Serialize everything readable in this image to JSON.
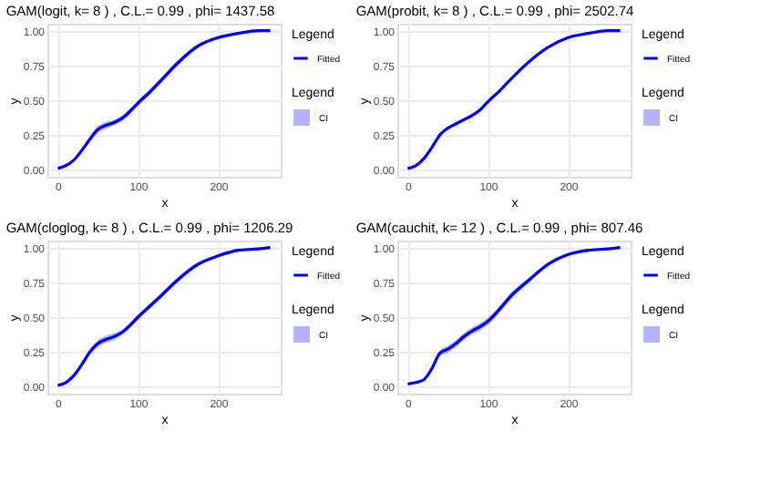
{
  "chart_data": [
    {
      "type": "line",
      "title": "GAM(logit, k= 8 ) , C.L.= 0.99 , phi= 1437.58",
      "xlabel": "x",
      "ylabel": "y",
      "legend_title": "Legend",
      "legend": "right",
      "grid": true,
      "x": [
        0,
        10,
        20,
        30,
        40,
        50,
        60,
        70,
        80,
        90,
        100,
        115,
        130,
        150,
        175,
        200,
        225,
        250,
        265
      ],
      "xlim": [
        -13,
        278
      ],
      "xticks": [
        0,
        100,
        200
      ],
      "ylim": [
        -0.05,
        1.05
      ],
      "yticks": [
        {
          "value": 0,
          "label": "0.00"
        },
        {
          "value": 0.25,
          "label": "0.25"
        },
        {
          "value": 0.5,
          "label": "0.50"
        },
        {
          "value": 0.75,
          "label": "0.75"
        },
        {
          "value": 1,
          "label": "1.00"
        }
      ],
      "series": [
        {
          "name": "Fitted",
          "color": "#0000ff",
          "values": [
            0.01,
            0.03,
            0.07,
            0.14,
            0.22,
            0.29,
            0.32,
            0.34,
            0.37,
            0.42,
            0.48,
            0.56,
            0.65,
            0.77,
            0.89,
            0.95,
            0.98,
            1.0,
            1.0
          ],
          "lower": [
            0.005,
            0.02,
            0.06,
            0.125,
            0.2,
            0.265,
            0.295,
            0.32,
            0.35,
            0.4,
            0.46,
            0.54,
            0.63,
            0.75,
            0.875,
            0.94,
            0.97,
            0.99,
            0.995
          ],
          "upper": [
            0.015,
            0.04,
            0.08,
            0.155,
            0.24,
            0.315,
            0.345,
            0.36,
            0.39,
            0.44,
            0.5,
            0.58,
            0.67,
            0.79,
            0.905,
            0.96,
            0.99,
            1.005,
            1.005
          ]
        },
        {
          "name": "CI",
          "type": "area",
          "color": "#0000ff",
          "values": [
            null,
            null,
            null,
            null,
            null,
            null,
            null,
            null,
            null,
            null,
            null,
            null,
            null,
            null,
            null,
            null,
            null,
            null,
            null
          ]
        }
      ]
    },
    {
      "type": "line",
      "title": "GAM(probit, k= 8 ) , C.L.= 0.99 , phi= 2502.74",
      "xlabel": "x",
      "ylabel": "y",
      "legend_title": "Legend",
      "legend": "right",
      "grid": true,
      "x": [
        0,
        10,
        20,
        30,
        40,
        50,
        60,
        70,
        80,
        90,
        100,
        115,
        130,
        150,
        175,
        200,
        225,
        250,
        265
      ],
      "xlim": [
        -13,
        278
      ],
      "xticks": [
        0,
        100,
        200
      ],
      "ylim": [
        -0.05,
        1.05
      ],
      "yticks": [
        {
          "value": 0,
          "label": "0.00"
        },
        {
          "value": 0.25,
          "label": "0.25"
        },
        {
          "value": 0.5,
          "label": "0.50"
        },
        {
          "value": 0.75,
          "label": "0.75"
        },
        {
          "value": 1,
          "label": "1.00"
        }
      ],
      "series": [
        {
          "name": "Fitted",
          "color": "#0000ff",
          "values": [
            0.01,
            0.03,
            0.08,
            0.16,
            0.25,
            0.3,
            0.33,
            0.36,
            0.39,
            0.43,
            0.49,
            0.57,
            0.66,
            0.77,
            0.88,
            0.95,
            0.98,
            1.0,
            1.0
          ],
          "lower": [
            0.005,
            0.025,
            0.075,
            0.155,
            0.245,
            0.288,
            0.318,
            0.348,
            0.378,
            0.42,
            0.485,
            0.565,
            0.655,
            0.765,
            0.875,
            0.945,
            0.975,
            0.995,
            0.998
          ],
          "upper": [
            0.015,
            0.035,
            0.085,
            0.165,
            0.255,
            0.312,
            0.342,
            0.372,
            0.402,
            0.44,
            0.495,
            0.575,
            0.665,
            0.775,
            0.885,
            0.955,
            0.985,
            1.003,
            1.002
          ]
        },
        {
          "name": "CI",
          "type": "area",
          "color": "#0000ff",
          "values": [
            null,
            null,
            null,
            null,
            null,
            null,
            null,
            null,
            null,
            null,
            null,
            null,
            null,
            null,
            null,
            null,
            null,
            null,
            null
          ]
        }
      ]
    },
    {
      "type": "line",
      "title": "GAM(cloglog, k= 8 ) , C.L.= 0.99 , phi= 1206.29",
      "xlabel": "x",
      "ylabel": "y",
      "legend_title": "Legend",
      "legend": "right",
      "grid": true,
      "x": [
        0,
        10,
        20,
        30,
        40,
        50,
        60,
        70,
        80,
        90,
        100,
        115,
        130,
        150,
        175,
        200,
        225,
        250,
        265
      ],
      "xlim": [
        -13,
        278
      ],
      "xticks": [
        0,
        100,
        200
      ],
      "ylim": [
        -0.05,
        1.05
      ],
      "yticks": [
        {
          "value": 0,
          "label": "0.00"
        },
        {
          "value": 0.25,
          "label": "0.25"
        },
        {
          "value": 0.5,
          "label": "0.50"
        },
        {
          "value": 0.75,
          "label": "0.75"
        },
        {
          "value": 1,
          "label": "1.00"
        }
      ],
      "series": [
        {
          "name": "Fitted",
          "color": "#0000ff",
          "values": [
            0.01,
            0.03,
            0.08,
            0.16,
            0.25,
            0.31,
            0.34,
            0.36,
            0.39,
            0.44,
            0.5,
            0.58,
            0.66,
            0.77,
            0.88,
            0.94,
            0.98,
            0.99,
            1.0
          ],
          "lower": [
            0.005,
            0.02,
            0.07,
            0.145,
            0.23,
            0.285,
            0.315,
            0.335,
            0.37,
            0.42,
            0.48,
            0.56,
            0.64,
            0.75,
            0.865,
            0.93,
            0.97,
            0.985,
            0.995
          ],
          "upper": [
            0.015,
            0.04,
            0.09,
            0.175,
            0.27,
            0.335,
            0.365,
            0.385,
            0.41,
            0.46,
            0.52,
            0.6,
            0.68,
            0.79,
            0.895,
            0.95,
            0.99,
            1.0,
            1.005
          ]
        },
        {
          "name": "CI",
          "type": "area",
          "color": "#0000ff",
          "values": [
            null,
            null,
            null,
            null,
            null,
            null,
            null,
            null,
            null,
            null,
            null,
            null,
            null,
            null,
            null,
            null,
            null,
            null,
            null
          ]
        }
      ]
    },
    {
      "type": "line",
      "title": "GAM(cauchit, k= 12 ) , C.L.= 0.99 , phi= 807.46",
      "xlabel": "x",
      "ylabel": "y",
      "legend_title": "Legend",
      "legend": "right",
      "grid": true,
      "x": [
        0,
        10,
        20,
        30,
        40,
        50,
        60,
        70,
        80,
        90,
        100,
        115,
        130,
        150,
        175,
        200,
        225,
        250,
        265
      ],
      "xlim": [
        -13,
        278
      ],
      "xticks": [
        0,
        100,
        200
      ],
      "ylim": [
        -0.05,
        1.05
      ],
      "yticks": [
        {
          "value": 0,
          "label": "0.00"
        },
        {
          "value": 0.25,
          "label": "0.25"
        },
        {
          "value": 0.5,
          "label": "0.50"
        },
        {
          "value": 0.75,
          "label": "0.75"
        },
        {
          "value": 1,
          "label": "1.00"
        }
      ],
      "series": [
        {
          "name": "Fitted",
          "color": "#0000ff",
          "values": [
            0.02,
            0.03,
            0.05,
            0.13,
            0.24,
            0.27,
            0.31,
            0.36,
            0.4,
            0.43,
            0.47,
            0.56,
            0.66,
            0.76,
            0.88,
            0.95,
            0.98,
            0.99,
            1.0
          ],
          "lower": [
            0.015,
            0.022,
            0.04,
            0.115,
            0.22,
            0.245,
            0.285,
            0.335,
            0.375,
            0.405,
            0.445,
            0.535,
            0.635,
            0.74,
            0.865,
            0.94,
            0.97,
            0.985,
            0.995
          ],
          "upper": [
            0.025,
            0.038,
            0.06,
            0.145,
            0.26,
            0.295,
            0.335,
            0.385,
            0.425,
            0.455,
            0.495,
            0.585,
            0.685,
            0.78,
            0.895,
            0.96,
            0.99,
            1.0,
            1.005
          ]
        },
        {
          "name": "CI",
          "type": "area",
          "color": "#0000ff",
          "values": [
            null,
            null,
            null,
            null,
            null,
            null,
            null,
            null,
            null,
            null,
            null,
            null,
            null,
            null,
            null,
            null,
            null,
            null,
            null
          ]
        }
      ]
    }
  ]
}
